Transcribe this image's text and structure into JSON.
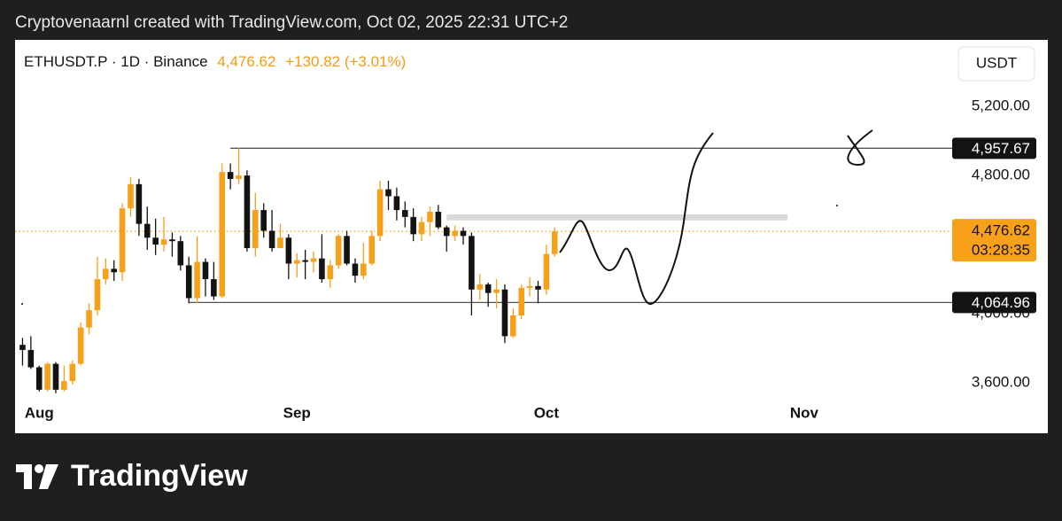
{
  "chart_data": {
    "type": "candlestick",
    "caption": "Cryptovenaarnl created with TradingView.com, Oct 02, 2025 22:31 UTC+2",
    "symbol": "ETHUSDT.P · 1D · Binance",
    "price_text": "4,476.62",
    "change_text": "+130.82 (+3.01%)",
    "currency": "USDT",
    "logo": "TradingView",
    "up_color": "#f7a11a",
    "down_color": "#131313",
    "x": [
      -2,
      -1,
      0,
      1,
      2,
      3,
      4,
      5,
      6,
      7,
      8,
      9,
      10,
      11,
      12,
      13,
      14,
      15,
      16,
      17,
      18,
      19,
      20,
      21,
      22,
      23,
      24,
      25,
      26,
      27,
      28,
      29,
      30,
      31,
      32,
      33,
      34,
      35,
      36,
      37,
      38,
      39,
      40,
      41,
      42,
      43,
      44,
      45,
      46,
      47,
      48,
      49,
      50,
      51,
      52,
      53,
      54,
      55,
      56,
      57,
      58,
      59,
      60,
      61,
      62
    ],
    "open": [
      3820,
      3790,
      3690,
      3560,
      3710,
      3560,
      3610,
      3710,
      3920,
      4020,
      4200,
      4260,
      4240,
      4610,
      4750,
      4520,
      4440,
      4400,
      4430,
      4420,
      4280,
      4090,
      4300,
      4200,
      4100,
      4820,
      4780,
      4800,
      4380,
      4600,
      4480,
      4380,
      4440,
      4290,
      4310,
      4300,
      4320,
      4200,
      4280,
      4450,
      4290,
      4220,
      4290,
      4450,
      4720,
      4680,
      4600,
      4560,
      4460,
      4530,
      4590,
      4500,
      4450,
      4480,
      4450,
      4140,
      4170,
      4120,
      4140,
      3870,
      3990,
      4150,
      4160,
      4140,
      4345.8
    ],
    "high": [
      3860,
      3870,
      3700,
      3720,
      3720,
      3700,
      3730,
      3950,
      4060,
      4330,
      4320,
      4310,
      4640,
      4790,
      4780,
      4620,
      4550,
      4560,
      4470,
      4450,
      4330,
      4450,
      4320,
      4300,
      4870,
      4870,
      4957.67,
      4830,
      4700,
      4640,
      4600,
      4520,
      4460,
      4350,
      4370,
      4360,
      4460,
      4310,
      4460,
      4480,
      4320,
      4410,
      4480,
      4770,
      4770,
      4730,
      4650,
      4610,
      4560,
      4620,
      4630,
      4510,
      4510,
      4500,
      4470,
      4230,
      4180,
      4200,
      4170,
      4030,
      4170,
      4210,
      4190,
      4400,
      4500
    ],
    "low": [
      3700,
      3680,
      3550,
      3550,
      3540,
      3550,
      3590,
      3700,
      3880,
      3990,
      4170,
      4190,
      4190,
      4560,
      4450,
      4370,
      4340,
      4360,
      4330,
      4250,
      4060,
      4060,
      4100,
      4080,
      4090,
      4720,
      4750,
      4360,
      4330,
      4440,
      4360,
      4380,
      4200,
      4210,
      4200,
      4240,
      4180,
      4150,
      4260,
      4280,
      4180,
      4200,
      4280,
      4420,
      4600,
      4540,
      4500,
      4420,
      4420,
      4450,
      4490,
      4360,
      4420,
      4400,
      3990,
      4080,
      4040,
      4030,
      3830,
      3860,
      3970,
      4100,
      4060,
      4110,
      4330
    ],
    "close": [
      3790,
      3690,
      3560,
      3710,
      3560,
      3610,
      3710,
      3920,
      4020,
      4200,
      4260,
      4240,
      4610,
      4750,
      4520,
      4440,
      4400,
      4430,
      4420,
      4280,
      4090,
      4300,
      4200,
      4100,
      4820,
      4780,
      4800,
      4380,
      4600,
      4480,
      4380,
      4440,
      4290,
      4310,
      4300,
      4320,
      4200,
      4280,
      4450,
      4290,
      4220,
      4290,
      4450,
      4720,
      4680,
      4600,
      4560,
      4460,
      4530,
      4590,
      4500,
      4450,
      4480,
      4450,
      4140,
      4170,
      4120,
      4140,
      3870,
      3990,
      4150,
      4160,
      4140,
      4345.8,
      4476.62
    ],
    "xlim": [
      -2.9,
      109.8
    ],
    "xticks": [
      {
        "value": 0,
        "label": "Aug"
      },
      {
        "value": 31,
        "label": "Sep"
      },
      {
        "value": 61,
        "label": "Oct"
      },
      {
        "value": 92,
        "label": "Nov"
      }
    ],
    "ylim": [
      3308,
      5585
    ],
    "yticks": [
      {
        "value": 5200,
        "label": "5,200.00"
      },
      {
        "value": 4800,
        "label": "4,800.00"
      },
      {
        "value": 4000,
        "label": "4,000.00"
      },
      {
        "value": 3600,
        "label": "3,600.00"
      }
    ],
    "levels": [
      {
        "value": 4957.67,
        "label": "4,957.67",
        "from": 23
      },
      {
        "value": 4064.96,
        "label": "4,064.96",
        "from": 18
      }
    ],
    "zone": {
      "low": 4540,
      "high": 4575,
      "from": 49,
      "to": 90
    },
    "last_price": {
      "value": 4476.62,
      "label": "4,476.62",
      "countdown": "03:28:35"
    }
  }
}
